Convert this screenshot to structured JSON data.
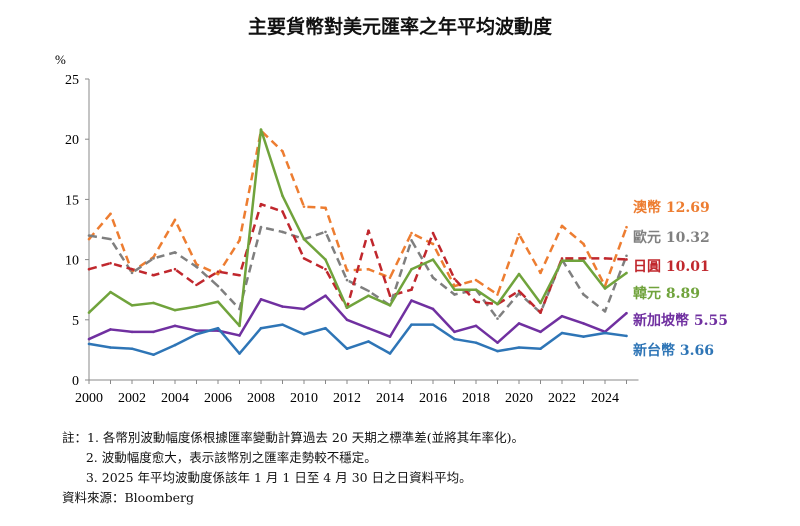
{
  "chart_data": {
    "type": "line",
    "title": "主要貨幣對美元匯率之年平均波動度",
    "ylabel": "%",
    "ylim": [
      0,
      25
    ],
    "yticks": [
      0,
      5,
      10,
      15,
      20,
      25
    ],
    "xlim": [
      2000,
      2025
    ],
    "xticks": [
      2000,
      2002,
      2004,
      2006,
      2008,
      2010,
      2012,
      2014,
      2016,
      2018,
      2020,
      2022,
      2024
    ],
    "x": [
      2000,
      2001,
      2002,
      2003,
      2004,
      2005,
      2006,
      2007,
      2008,
      2009,
      2010,
      2011,
      2012,
      2013,
      2014,
      2015,
      2016,
      2017,
      2018,
      2019,
      2020,
      2021,
      2022,
      2023,
      2024,
      2025
    ],
    "grid": false,
    "legend": "right (end labels)",
    "series": [
      {
        "name": "澳幣",
        "end_label": "12.69",
        "color": "#ED7D31",
        "dash": true,
        "values": [
          11.7,
          13.8,
          9.0,
          10.2,
          13.3,
          9.6,
          8.8,
          11.6,
          20.7,
          19.0,
          14.4,
          14.3,
          9.1,
          9.2,
          8.5,
          12.2,
          11.3,
          7.8,
          8.3,
          7.1,
          12.1,
          8.9,
          12.8,
          11.3,
          7.8,
          12.69
        ]
      },
      {
        "name": "歐元",
        "end_label": "10.32",
        "color": "#7F7F7F",
        "dash": true,
        "values": [
          12.0,
          11.7,
          8.9,
          10.1,
          10.6,
          9.4,
          7.8,
          5.9,
          12.7,
          12.3,
          11.7,
          12.3,
          8.3,
          7.4,
          6.2,
          11.6,
          8.5,
          7.1,
          7.5,
          5.1,
          7.2,
          5.6,
          10.0,
          7.1,
          5.7,
          10.32
        ]
      },
      {
        "name": "日圓",
        "end_label": "10.01",
        "color": "#C0272D",
        "dash": true,
        "values": [
          9.2,
          9.7,
          9.2,
          8.7,
          9.2,
          7.9,
          9.0,
          8.7,
          14.6,
          14.0,
          10.1,
          9.2,
          6.0,
          12.4,
          7.0,
          7.5,
          12.2,
          8.4,
          6.5,
          6.3,
          7.4,
          5.6,
          10.1,
          10.1,
          10.1,
          10.01
        ]
      },
      {
        "name": "韓元",
        "end_label": "8.89",
        "color": "#70A33C",
        "dash": false,
        "values": [
          5.6,
          7.3,
          6.2,
          6.4,
          5.8,
          6.1,
          6.5,
          4.5,
          20.8,
          15.3,
          11.7,
          10.0,
          6.0,
          7.0,
          6.2,
          9.2,
          10.0,
          7.5,
          7.5,
          6.3,
          8.8,
          6.4,
          9.9,
          9.9,
          7.6,
          8.89
        ]
      },
      {
        "name": "新加坡幣",
        "end_label": "5.55",
        "color": "#7030A0",
        "dash": false,
        "values": [
          3.4,
          4.2,
          4.0,
          4.0,
          4.5,
          4.1,
          4.1,
          3.7,
          6.7,
          6.1,
          5.9,
          7.0,
          5.0,
          4.3,
          3.6,
          6.6,
          5.9,
          4.0,
          4.5,
          3.1,
          4.7,
          4.0,
          5.3,
          4.7,
          4.0,
          5.55
        ]
      },
      {
        "name": "新台幣",
        "end_label": "3.66",
        "color": "#2E75B6",
        "dash": false,
        "values": [
          3.0,
          2.7,
          2.6,
          2.1,
          2.9,
          3.8,
          4.3,
          2.2,
          4.3,
          4.6,
          3.8,
          4.3,
          2.6,
          3.2,
          2.2,
          4.6,
          4.6,
          3.4,
          3.1,
          2.4,
          2.7,
          2.6,
          3.9,
          3.6,
          3.9,
          3.66
        ]
      }
    ]
  },
  "notes": [
    "註：1. 各幣別波動幅度係根據匯率變動計算過去 20 天期之標準差(並將其年率化)。",
    "      2. 波動幅度愈大，表示該幣別之匯率走勢較不穩定。",
    "      3. 2025 年平均波動度係該年 1 月 1 日至 4 月 30 日之日資料平均。"
  ],
  "source": "資料來源：Bloomberg"
}
